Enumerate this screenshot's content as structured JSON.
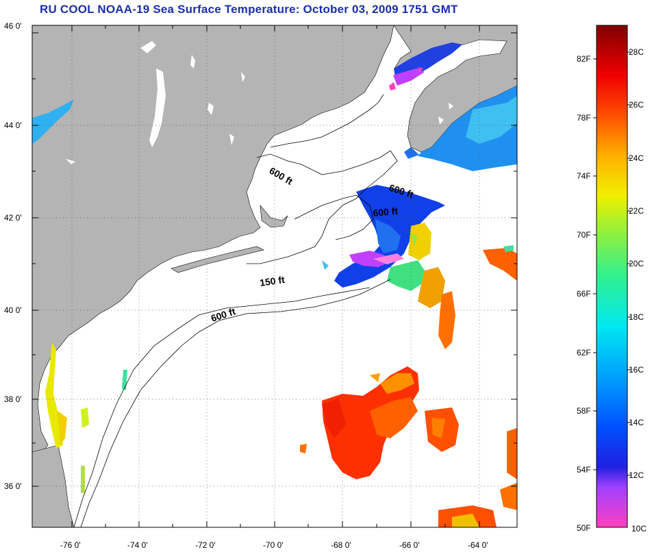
{
  "title": "RU COOL  NOAA-19  Sea Surface Temperature:  October 03, 2009 1751 GMT",
  "map": {
    "lat_ticks": [
      "46 0'",
      "44 0'",
      "42 0'",
      "40 0'",
      "38 0'",
      "36 0'"
    ],
    "lon_ticks": [
      "-76 0'",
      "-74 0'",
      "-72 0'",
      "-70 0'",
      "-68 0'",
      "-66 0'",
      "-64 0'"
    ],
    "contour_labels": [
      "600 ft",
      "600 ft",
      "600 ft",
      "150 ft",
      "600 ft"
    ],
    "land_color": "#b4b4b4",
    "water_color": "#ffffff"
  },
  "colorbar": {
    "f_labels": [
      "82F",
      "78F",
      "74F",
      "70F",
      "66F",
      "62F",
      "58F",
      "54F",
      "50F"
    ],
    "c_labels": [
      "28C",
      "26C",
      "24C",
      "22C",
      "20C",
      "18C",
      "16C",
      "14C",
      "12C",
      "10C"
    ],
    "range_f": [
      50,
      84
    ]
  }
}
